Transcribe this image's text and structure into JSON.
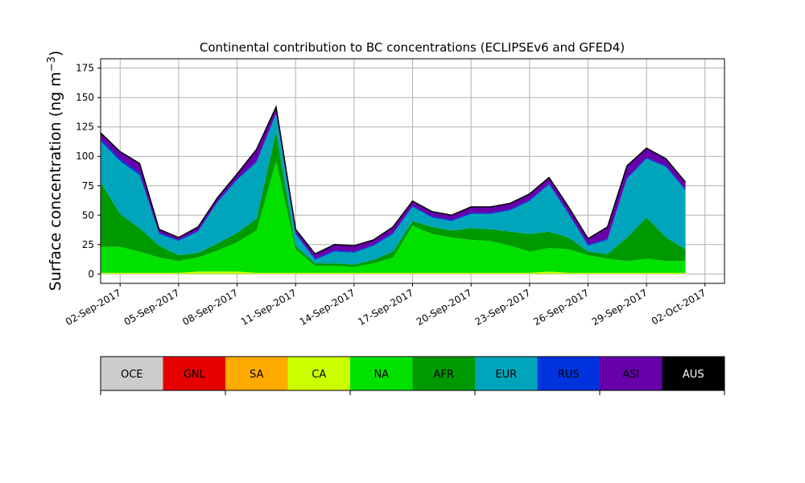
{
  "chart_data": {
    "type": "area",
    "title": "Continental contribution to BC concentrations (ECLIPSEv6 and GFED4)",
    "ylabel": "Surface concentration (ng m",
    "ylabel_unit_sup": "−3",
    "ylabel_close": ")",
    "xlabel": "",
    "x_start": "2017-09-01",
    "x_end": "2017-10-02",
    "xlim": [
      "2017-09-01",
      "2017-10-03"
    ],
    "ylim": [
      -8,
      183
    ],
    "yticks": [
      0,
      25,
      50,
      75,
      100,
      125,
      150,
      175
    ],
    "xtick_labels": [
      "02-Sep-2017",
      "05-Sep-2017",
      "08-Sep-2017",
      "11-Sep-2017",
      "14-Sep-2017",
      "17-Sep-2017",
      "20-Sep-2017",
      "23-Sep-2017",
      "26-Sep-2017",
      "29-Sep-2017",
      "02-Oct-2017"
    ],
    "grid": true,
    "stacked": true,
    "dates": [
      "2017-09-01",
      "2017-09-02",
      "2017-09-03",
      "2017-09-04",
      "2017-09-05",
      "2017-09-06",
      "2017-09-07",
      "2017-09-08",
      "2017-09-09",
      "2017-09-10",
      "2017-09-11",
      "2017-09-12",
      "2017-09-13",
      "2017-09-14",
      "2017-09-15",
      "2017-09-16",
      "2017-09-17",
      "2017-09-18",
      "2017-09-19",
      "2017-09-20",
      "2017-09-21",
      "2017-09-22",
      "2017-09-23",
      "2017-09-24",
      "2017-09-25",
      "2017-09-26",
      "2017-09-27",
      "2017-09-28",
      "2017-09-29",
      "2017-09-30",
      "2017-10-01"
    ],
    "series": [
      {
        "name": "OCE",
        "color": "#cccccc",
        "values": [
          0,
          0,
          0,
          0,
          0,
          0,
          0,
          0,
          0,
          0,
          0,
          0,
          0,
          0,
          0,
          0,
          0,
          0,
          0,
          0,
          0,
          0,
          0,
          0,
          0,
          0,
          0,
          0,
          0,
          0,
          0
        ]
      },
      {
        "name": "GNL",
        "color": "#e60000",
        "values": [
          0,
          0,
          0,
          0,
          0,
          0,
          0,
          0,
          0,
          0,
          0,
          0,
          0,
          0,
          0,
          0,
          0,
          0,
          0,
          0,
          0,
          0,
          0,
          0,
          0,
          0,
          0,
          0,
          0,
          0,
          0
        ]
      },
      {
        "name": "SA",
        "color": "#ffaa00",
        "values": [
          0,
          0,
          0,
          0,
          0,
          0,
          0,
          0,
          0,
          0,
          0,
          0,
          0,
          0,
          0,
          0,
          0,
          0,
          0,
          0,
          0,
          0,
          0,
          0,
          0,
          0,
          0,
          0,
          0,
          0,
          0
        ]
      },
      {
        "name": "CA",
        "color": "#ccff00",
        "values": [
          1,
          1,
          1,
          1,
          1,
          2,
          2,
          2,
          1,
          1,
          1,
          1,
          1,
          1,
          1,
          1,
          1,
          1,
          1,
          1,
          1,
          1,
          1,
          2,
          1,
          1,
          1,
          1,
          1,
          1,
          1
        ]
      },
      {
        "name": "NA",
        "color": "#00e100",
        "values": [
          22,
          22,
          18,
          13,
          10,
          12,
          18,
          25,
          36,
          95,
          20,
          6,
          6,
          5,
          8,
          13,
          40,
          33,
          30,
          28,
          27,
          23,
          18,
          20,
          20,
          15,
          12,
          10,
          12,
          10,
          10
        ]
      },
      {
        "name": "AFR",
        "color": "#009900",
        "values": [
          55,
          28,
          20,
          10,
          5,
          4,
          6,
          8,
          10,
          25,
          3,
          2,
          2,
          2,
          3,
          5,
          4,
          6,
          6,
          10,
          10,
          12,
          15,
          14,
          10,
          3,
          4,
          20,
          35,
          20,
          10
        ]
      },
      {
        "name": "EUR",
        "color": "#00a5bb",
        "values": [
          35,
          45,
          45,
          10,
          12,
          18,
          35,
          45,
          48,
          15,
          10,
          3,
          10,
          10,
          12,
          15,
          12,
          8,
          8,
          12,
          13,
          18,
          28,
          40,
          20,
          5,
          12,
          50,
          50,
          60,
          50
        ]
      },
      {
        "name": "RUS",
        "color": "#0033dd",
        "values": [
          2,
          2,
          2,
          1,
          1,
          1,
          1,
          1,
          1,
          1,
          1,
          1,
          1,
          1,
          1,
          1,
          1,
          1,
          1,
          1,
          1,
          1,
          1,
          1,
          1,
          1,
          1,
          1,
          1,
          1,
          1
        ]
      },
      {
        "name": "ASI",
        "color": "#6600aa",
        "values": [
          5,
          6,
          8,
          3,
          2,
          3,
          3,
          4,
          10,
          5,
          3,
          4,
          5,
          5,
          4,
          5,
          4,
          4,
          4,
          5,
          5,
          5,
          5,
          5,
          5,
          5,
          10,
          10,
          8,
          6,
          6
        ]
      },
      {
        "name": "AUS",
        "color": "#000000",
        "values": [
          0,
          0,
          0,
          0,
          0,
          0,
          0,
          0,
          0,
          0,
          0,
          0,
          0,
          0,
          0,
          0,
          0,
          0,
          0,
          0,
          0,
          0,
          0,
          0,
          0,
          0,
          0,
          0,
          0,
          0,
          0
        ]
      }
    ],
    "legend": {
      "placement": "bottom",
      "entries": [
        {
          "label": "OCE",
          "color": "#cccccc",
          "text_color": "#000000"
        },
        {
          "label": "GNL",
          "color": "#e60000",
          "text_color": "#000000"
        },
        {
          "label": "SA",
          "color": "#ffaa00",
          "text_color": "#000000"
        },
        {
          "label": "CA",
          "color": "#ccff00",
          "text_color": "#000000"
        },
        {
          "label": "NA",
          "color": "#00e100",
          "text_color": "#000000"
        },
        {
          "label": "AFR",
          "color": "#009900",
          "text_color": "#000000"
        },
        {
          "label": "EUR",
          "color": "#00a5bb",
          "text_color": "#000000"
        },
        {
          "label": "RUS",
          "color": "#0033dd",
          "text_color": "#000000"
        },
        {
          "label": "ASI",
          "color": "#6600aa",
          "text_color": "#000000"
        },
        {
          "label": "AUS",
          "color": "#000000",
          "text_color": "#ffffff"
        }
      ]
    }
  }
}
